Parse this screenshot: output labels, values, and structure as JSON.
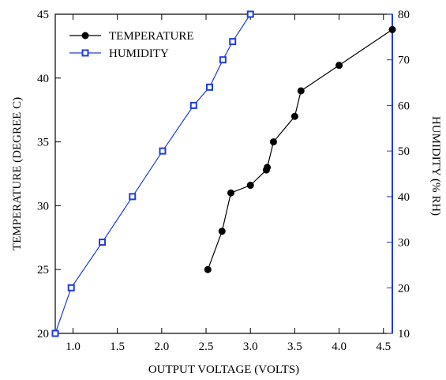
{
  "chart_data": {
    "type": "line",
    "xlabel": "OUTPUT VOLTAGE (VOLTS)",
    "ylabel_left": "TEMPERATURE (DEGREE C)",
    "ylabel_right": "HUMIDITY (% RH)",
    "xlim": [
      0.8,
      4.6
    ],
    "ylim_left": [
      20,
      45
    ],
    "ylim_right": [
      10,
      80
    ],
    "x_ticks": [
      "1.0",
      "1.5",
      "2.0",
      "2.5",
      "3.0",
      "3.5",
      "4.0",
      "4.5"
    ],
    "y_ticks_left": [
      "20",
      "25",
      "30",
      "35",
      "40",
      "45"
    ],
    "y_ticks_right": [
      "10",
      "20",
      "30",
      "40",
      "50",
      "60",
      "70",
      "80"
    ],
    "grid": false,
    "legend_position": "top-left",
    "series": [
      {
        "name": "TEMPERATURE",
        "axis": "left",
        "color": "#000000",
        "marker": "filled-circle",
        "x": [
          2.52,
          2.68,
          2.78,
          3.0,
          3.18,
          3.19,
          3.26,
          3.5,
          3.57,
          4.0,
          4.6
        ],
        "y": [
          25.0,
          28.0,
          31.0,
          31.6,
          32.8,
          33.0,
          35.0,
          37.0,
          39.0,
          41.0,
          43.8
        ]
      },
      {
        "name": "HUMIDITY",
        "axis": "right",
        "color": "#1f3ddb",
        "marker": "open-square",
        "x": [
          0.8,
          0.98,
          1.33,
          1.67,
          2.01,
          2.36,
          2.54,
          2.69,
          2.8,
          3.0
        ],
        "y": [
          10,
          20,
          30,
          40,
          50,
          60,
          64,
          70,
          74,
          80
        ]
      }
    ]
  }
}
